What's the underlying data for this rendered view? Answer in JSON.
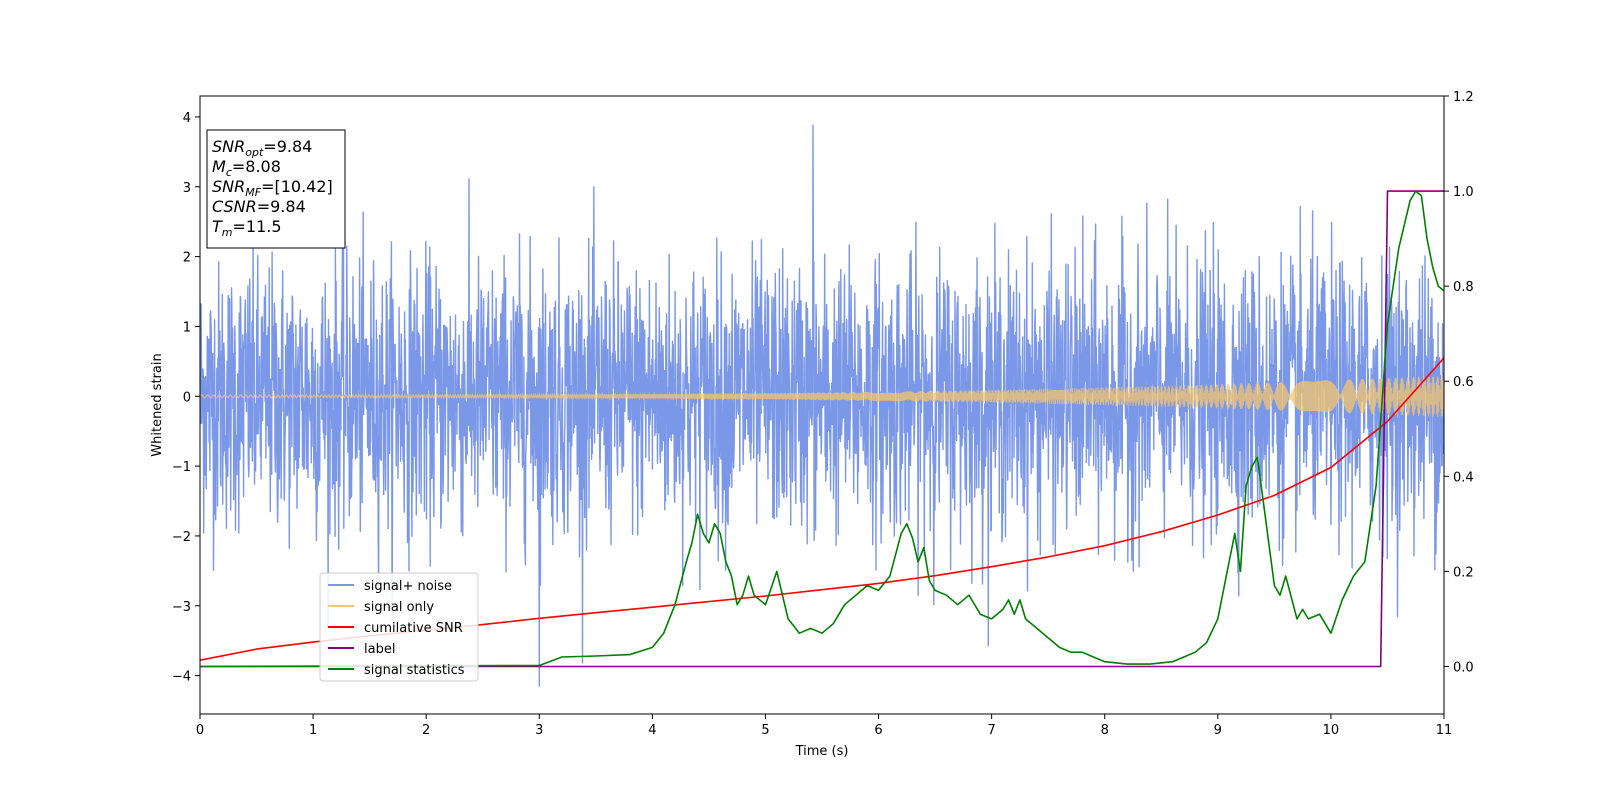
{
  "chart_data": {
    "type": "line",
    "title": "",
    "xlabel": "Time (s)",
    "ylabel": "Whitened strain",
    "y2label": "",
    "xlim": [
      0,
      11
    ],
    "ylim": [
      -4.55,
      4.3
    ],
    "y2lim": [
      -0.1,
      1.2
    ],
    "xticks": [
      "0",
      "1",
      "2",
      "3",
      "4",
      "5",
      "6",
      "7",
      "8",
      "9",
      "10",
      "11"
    ],
    "yticks": [
      "−4",
      "−3",
      "−2",
      "−1",
      "0",
      "1",
      "2",
      "3",
      "4"
    ],
    "y2ticks": [
      "0.0",
      "0.2",
      "0.4",
      "0.6",
      "0.8",
      "1.0",
      "1.2"
    ],
    "grid": false,
    "legend_position": "lower-left",
    "annotation": {
      "lines": [
        {
          "base": "SNR",
          "sub": "opt",
          "value": "=9.84"
        },
        {
          "base": "M",
          "sub": "c",
          "value": "=8.08"
        },
        {
          "base": "SNR",
          "sub": "MF",
          "value": "=[10.42]"
        },
        {
          "base": "CSNR",
          "sub": "",
          "value": "=9.84"
        },
        {
          "base": "T",
          "sub": "m",
          "value": "=11.5"
        }
      ]
    },
    "series": [
      {
        "name": "signal+ noise",
        "axis": "left",
        "color": "#7a97e8",
        "kind": "noise",
        "std": 0.95,
        "envelope_min": -4.15,
        "envelope_max": 3.88
      },
      {
        "name": "signal only",
        "axis": "left",
        "color": "#f5c56e",
        "kind": "chirp",
        "amplitude_start": 0.02,
        "amplitude_end": 0.3
      },
      {
        "name": "cumilative SNR",
        "axis": "left",
        "color": "#ff0000",
        "x": [
          0,
          0.5,
          1,
          1.5,
          2,
          2.5,
          3,
          3.5,
          4,
          4.5,
          5,
          5.5,
          6,
          6.5,
          7,
          7.5,
          8,
          8.5,
          9,
          9.5,
          10,
          10.5,
          11
        ],
        "y": [
          -3.78,
          -3.62,
          -3.52,
          -3.43,
          -3.35,
          -3.27,
          -3.18,
          -3.1,
          -3.02,
          -2.94,
          -2.86,
          -2.77,
          -2.68,
          -2.57,
          -2.44,
          -2.3,
          -2.14,
          -1.94,
          -1.7,
          -1.42,
          -1.02,
          -0.36,
          0.55
        ]
      },
      {
        "name": "label",
        "axis": "right",
        "color": "#800080",
        "x": [
          0,
          10.44,
          10.5,
          11
        ],
        "y": [
          0.0,
          0.0,
          1.0,
          1.0
        ]
      },
      {
        "name": "signal statistics",
        "axis": "right",
        "color": "#008000",
        "x": [
          0,
          3.0,
          3.2,
          3.5,
          3.8,
          4.0,
          4.1,
          4.2,
          4.3,
          4.35,
          4.4,
          4.45,
          4.5,
          4.55,
          4.6,
          4.65,
          4.7,
          4.75,
          4.8,
          4.85,
          4.9,
          5.0,
          5.1,
          5.2,
          5.3,
          5.4,
          5.5,
          5.6,
          5.7,
          5.8,
          5.9,
          6.0,
          6.1,
          6.2,
          6.25,
          6.3,
          6.35,
          6.4,
          6.45,
          6.5,
          6.6,
          6.7,
          6.8,
          6.9,
          7.0,
          7.1,
          7.15,
          7.2,
          7.25,
          7.3,
          7.4,
          7.5,
          7.6,
          7.7,
          7.8,
          7.9,
          8.0,
          8.2,
          8.4,
          8.6,
          8.7,
          8.8,
          8.9,
          9.0,
          9.1,
          9.15,
          9.2,
          9.25,
          9.3,
          9.35,
          9.4,
          9.5,
          9.55,
          9.6,
          9.7,
          9.75,
          9.8,
          9.9,
          10.0,
          10.1,
          10.2,
          10.3,
          10.4,
          10.45,
          10.5,
          10.6,
          10.7,
          10.75,
          10.8,
          10.85,
          10.9,
          10.95,
          11.0
        ],
        "y": [
          0.0,
          0.002,
          0.02,
          0.022,
          0.025,
          0.04,
          0.07,
          0.13,
          0.22,
          0.26,
          0.32,
          0.28,
          0.26,
          0.3,
          0.28,
          0.22,
          0.19,
          0.13,
          0.15,
          0.19,
          0.15,
          0.13,
          0.2,
          0.1,
          0.07,
          0.08,
          0.07,
          0.09,
          0.13,
          0.15,
          0.17,
          0.16,
          0.19,
          0.28,
          0.3,
          0.27,
          0.22,
          0.25,
          0.18,
          0.16,
          0.15,
          0.13,
          0.15,
          0.11,
          0.1,
          0.12,
          0.14,
          0.11,
          0.14,
          0.1,
          0.08,
          0.06,
          0.04,
          0.03,
          0.03,
          0.02,
          0.01,
          0.005,
          0.005,
          0.01,
          0.02,
          0.03,
          0.05,
          0.1,
          0.22,
          0.28,
          0.2,
          0.38,
          0.42,
          0.44,
          0.35,
          0.17,
          0.15,
          0.19,
          0.1,
          0.12,
          0.1,
          0.11,
          0.07,
          0.14,
          0.19,
          0.22,
          0.38,
          0.55,
          0.72,
          0.88,
          0.98,
          1.0,
          0.99,
          0.9,
          0.84,
          0.8,
          0.79
        ]
      }
    ]
  }
}
